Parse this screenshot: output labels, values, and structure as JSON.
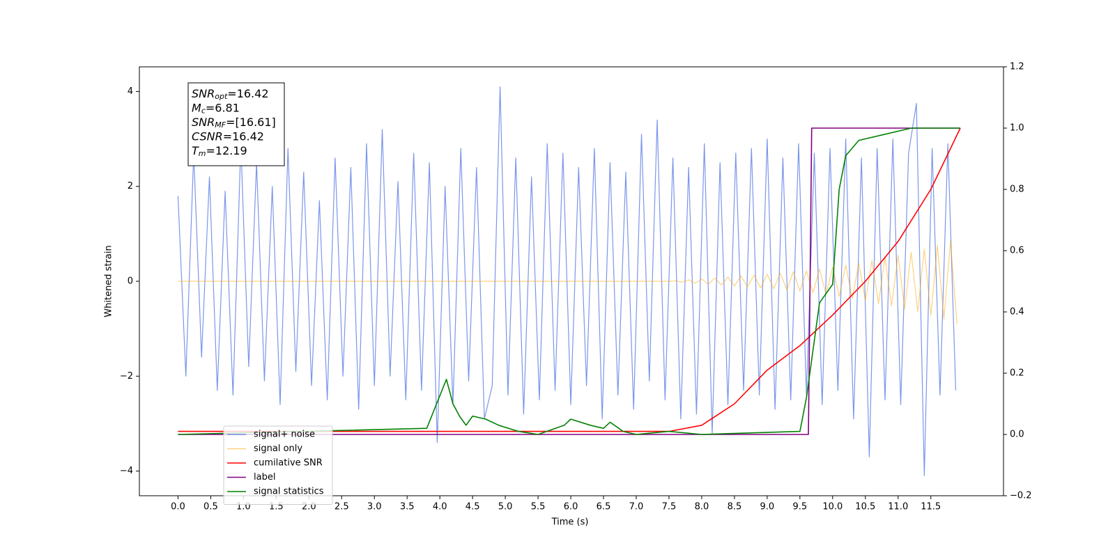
{
  "chart_data": {
    "type": "line",
    "xlabel": "Time (s)",
    "ylabel": "Whitened strain",
    "xlim": [
      -0.59,
      12.61
    ],
    "ylim": [
      -4.52,
      4.52
    ],
    "y2lim": [
      -0.2,
      1.2
    ],
    "xticks": [
      {
        "value": 0,
        "label": "0.0"
      },
      0.5,
      {
        "value": 1,
        "label": "1.0"
      },
      1.5,
      {
        "value": 2,
        "label": "2.0"
      },
      2.5,
      {
        "value": 3,
        "label": "3.0"
      },
      3.5,
      {
        "value": 4,
        "label": "4.0"
      },
      4.5,
      {
        "value": 5,
        "label": "5.0"
      },
      5.5,
      {
        "value": 6,
        "label": "6.0"
      },
      6.5,
      {
        "value": 7,
        "label": "7.0"
      },
      7.5,
      {
        "value": 8,
        "label": "8.0"
      },
      8.5,
      {
        "value": 9,
        "label": "9.0"
      },
      9.5,
      {
        "value": 10,
        "label": "10.0"
      },
      10.5,
      {
        "value": 11,
        "label": "11.0"
      },
      11.5
    ],
    "yticks": [
      {
        "value": -4,
        "label": "−4"
      },
      {
        "value": -2,
        "label": "−2"
      },
      0,
      2,
      4
    ],
    "y2ticks": [
      {
        "value": -0.2,
        "label": "−0.2"
      },
      {
        "value": 0,
        "label": "0.0"
      },
      0.2,
      0.4,
      0.6,
      0.8,
      {
        "value": 1,
        "label": "1.0"
      },
      1.2
    ],
    "grid": false,
    "legend": "lower left",
    "annotations": [
      {
        "symbol": "SNR",
        "subscript": "opt",
        "text": "=16.42"
      },
      {
        "symbol": "M",
        "subscript": "c",
        "text": "=6.81"
      },
      {
        "symbol": "SNR",
        "subscript": "MF",
        "text": "=[16.61]"
      },
      {
        "symbol": "CSNR",
        "text": "=16.42"
      },
      {
        "symbol": "T",
        "subscript": "m",
        "text": "=12.19"
      }
    ],
    "series": [
      {
        "name": "signal+ noise",
        "color": "#4169e1",
        "alpha": 0.7,
        "x": [
          0,
          0.12,
          0.24,
          0.36,
          0.48,
          0.6,
          0.72,
          0.84,
          0.96,
          1.08,
          1.2,
          1.32,
          1.44,
          1.56,
          1.68,
          1.8,
          1.92,
          2.04,
          2.16,
          2.28,
          2.4,
          2.52,
          2.64,
          2.76,
          2.88,
          3,
          3.12,
          3.24,
          3.36,
          3.48,
          3.6,
          3.72,
          3.84,
          3.96,
          4.08,
          4.2,
          4.32,
          4.44,
          4.56,
          4.68,
          4.8,
          4.92,
          5.04,
          5.16,
          5.28,
          5.4,
          5.52,
          5.64,
          5.76,
          5.88,
          6,
          6.12,
          6.24,
          6.36,
          6.48,
          6.6,
          6.72,
          6.84,
          6.96,
          7.08,
          7.2,
          7.32,
          7.44,
          7.56,
          7.68,
          7.8,
          7.92,
          8.04,
          8.16,
          8.28,
          8.4,
          8.52,
          8.64,
          8.76,
          8.88,
          9,
          9.12,
          9.24,
          9.36,
          9.48,
          9.6,
          9.72,
          9.84,
          9.96,
          10.08,
          10.2,
          10.32,
          10.44,
          10.56,
          10.68,
          10.8,
          10.92,
          11.04,
          11.16,
          11.28,
          11.4,
          11.52,
          11.64,
          11.76,
          11.88
        ],
        "values": [
          1.8,
          -2.0,
          2.7,
          -1.6,
          2.2,
          -2.3,
          1.9,
          -2.4,
          2.9,
          -1.8,
          2.5,
          -2.1,
          2.0,
          -2.6,
          2.8,
          -1.9,
          2.3,
          -2.2,
          1.7,
          -2.5,
          2.6,
          -2.0,
          2.4,
          -2.7,
          2.9,
          -2.2,
          3.2,
          -2.0,
          2.1,
          -2.5,
          2.7,
          -2.3,
          2.5,
          -3.4,
          2.0,
          -2.6,
          2.8,
          -2.1,
          2.4,
          -2.9,
          -2.2,
          4.1,
          -2.4,
          2.6,
          -2.8,
          2.2,
          -2.5,
          2.9,
          -2.3,
          2.7,
          -2.6,
          2.4,
          -2.2,
          2.8,
          -2.9,
          2.5,
          -2.4,
          2.3,
          -2.7,
          3.1,
          -2.1,
          3.4,
          -2.5,
          2.6,
          -2.9,
          2.4,
          -2.8,
          2.9,
          -3.2,
          2.5,
          -2.6,
          2.7,
          -2.3,
          2.8,
          -2.4,
          3.0,
          -2.7,
          2.6,
          -2.5,
          2.9,
          -2.4,
          2.7,
          -2.6,
          2.8,
          -2.3,
          3.0,
          -2.9,
          2.6,
          -3.7,
          2.8,
          -2.5,
          3.0,
          -2.6,
          2.7,
          3.75,
          -4.1,
          2.8,
          -2.4,
          2.9,
          -2.3
        ]
      },
      {
        "name": "signal only",
        "color": "#ffa500",
        "alpha": 0.5,
        "x": [
          0,
          7.5,
          7.6,
          7.7,
          7.8,
          7.9,
          8.0,
          8.1,
          8.2,
          8.3,
          8.4,
          8.5,
          8.6,
          8.7,
          8.8,
          8.9,
          9.0,
          9.1,
          9.2,
          9.3,
          9.4,
          9.5,
          9.6,
          9.7,
          9.8,
          9.9,
          10.0,
          10.1,
          10.2,
          10.3,
          10.4,
          10.5,
          10.6,
          10.7,
          10.8,
          10.9,
          11.0,
          11.1,
          11.2,
          11.3,
          11.4,
          11.5,
          11.6,
          11.7,
          11.8,
          11.9
        ],
        "values": [
          0,
          0,
          0.01,
          -0.02,
          0.03,
          -0.04,
          0.05,
          -0.06,
          0.07,
          -0.08,
          0.09,
          -0.1,
          0.11,
          -0.12,
          0.13,
          -0.14,
          0.15,
          -0.16,
          0.17,
          -0.18,
          0.2,
          -0.21,
          0.22,
          -0.24,
          0.26,
          -0.28,
          0.3,
          -0.32,
          0.34,
          -0.36,
          0.38,
          -0.41,
          0.44,
          -0.47,
          0.5,
          -0.52,
          0.55,
          -0.58,
          0.61,
          -0.64,
          0.68,
          -0.72,
          0.76,
          -0.8,
          0.85,
          -0.9
        ]
      },
      {
        "name": "cumilative SNR",
        "color": "#ff0000",
        "axis": "y2",
        "x": [
          0,
          7.5,
          8.0,
          8.5,
          9.0,
          9.5,
          10.0,
          10.5,
          11.0,
          11.5,
          11.95
        ],
        "values": [
          0.01,
          0.01,
          0.03,
          0.1,
          0.21,
          0.29,
          0.39,
          0.5,
          0.63,
          0.8,
          1.0
        ]
      },
      {
        "name": "label",
        "color": "#800080",
        "axis": "y2",
        "x": [
          0,
          9.63,
          9.68,
          11.95
        ],
        "values": [
          0,
          0,
          1,
          1
        ]
      },
      {
        "name": "signal statistics",
        "color": "#008000",
        "axis": "y2",
        "x": [
          0,
          3.8,
          4.1,
          4.2,
          4.3,
          4.4,
          4.5,
          4.7,
          4.9,
          5.2,
          5.5,
          5.9,
          6.0,
          6.3,
          6.5,
          6.6,
          6.8,
          7.0,
          7.5,
          8.0,
          9.5,
          9.6,
          9.8,
          10.0,
          10.1,
          10.2,
          10.4,
          10.8,
          11.2,
          11.95
        ],
        "values": [
          0,
          0.02,
          0.18,
          0.1,
          0.06,
          0.03,
          0.06,
          0.05,
          0.03,
          0.01,
          0,
          0.03,
          0.05,
          0.03,
          0.02,
          0.04,
          0.01,
          0,
          0.01,
          0,
          0.01,
          0.12,
          0.43,
          0.49,
          0.8,
          0.91,
          0.96,
          0.98,
          1.0,
          1.0
        ]
      }
    ]
  }
}
